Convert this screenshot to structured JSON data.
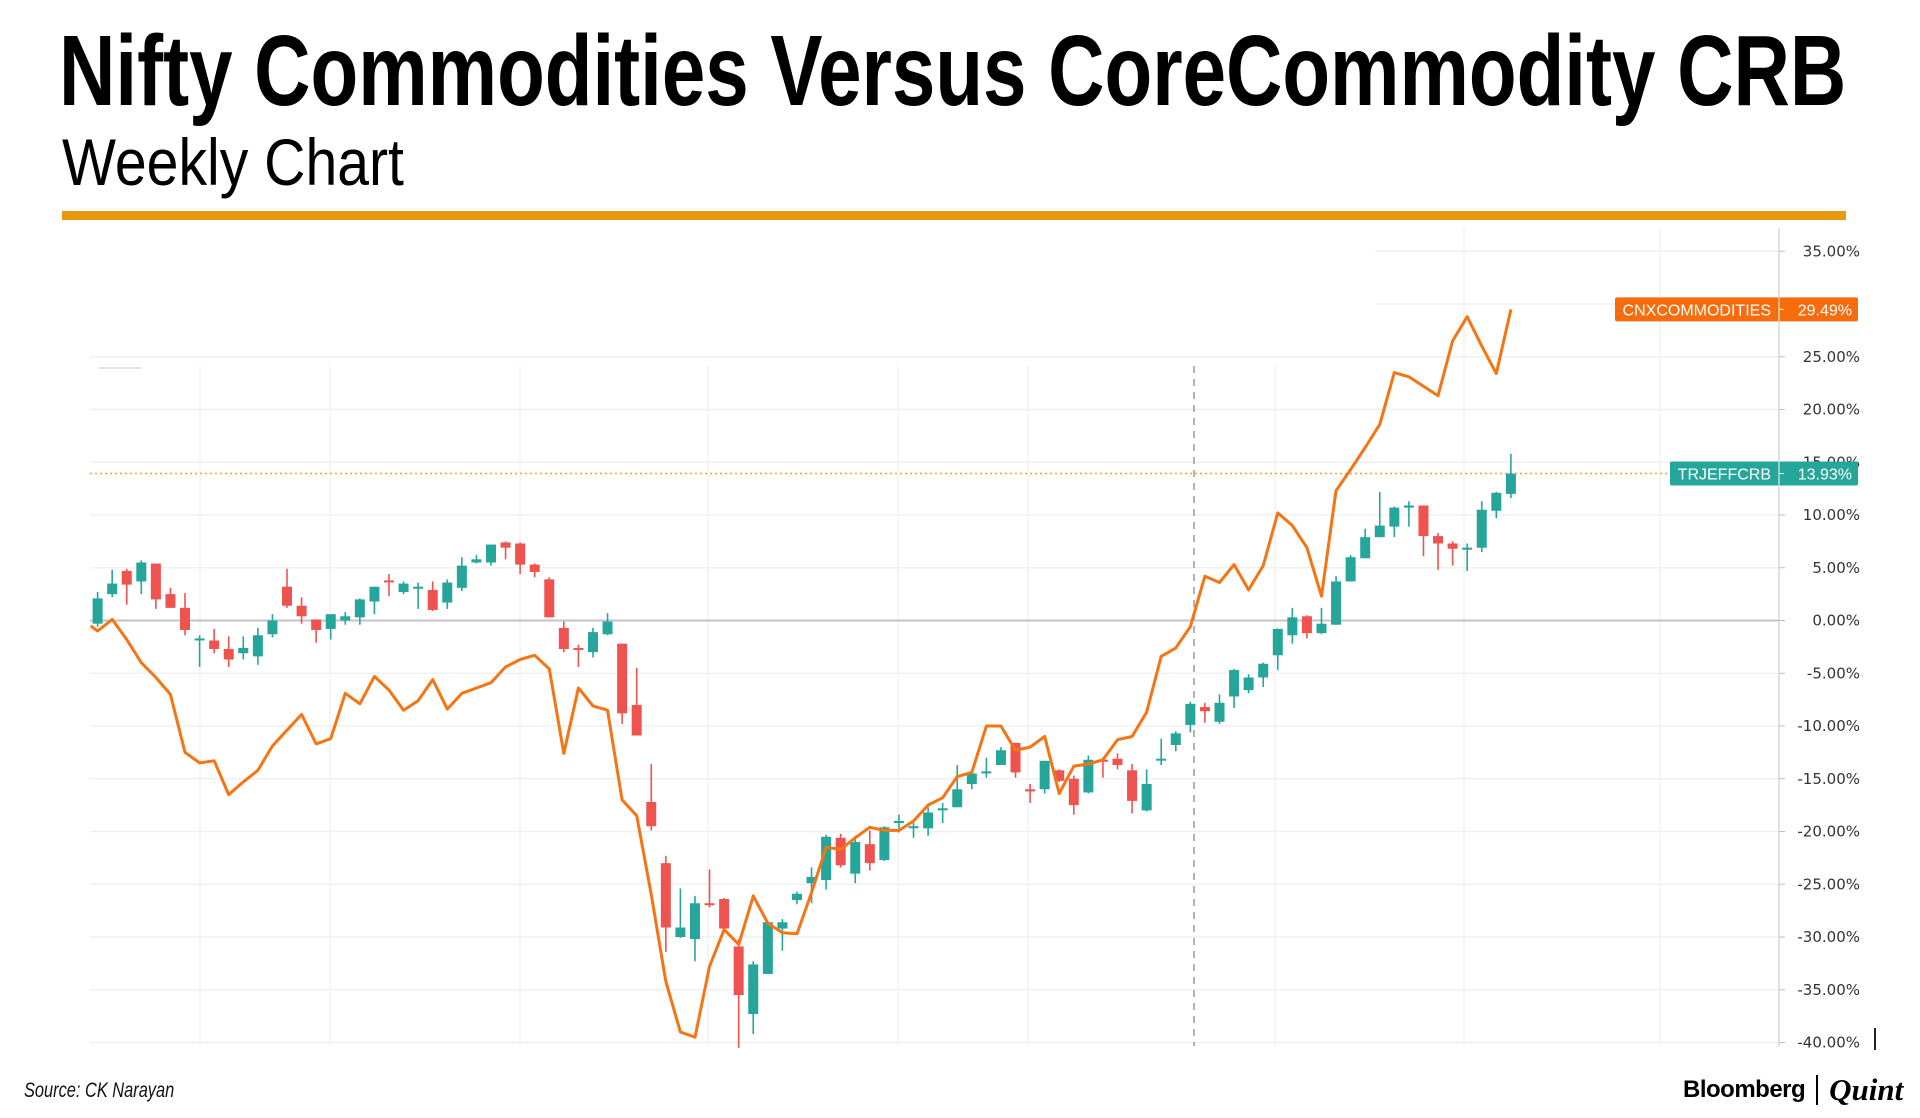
{
  "header": {
    "title": "Nifty Commodities Versus CoreCommodity CRB",
    "subtitle": "Weekly Chart"
  },
  "footer": {
    "source": "Source: CK Narayan",
    "logo_left": "Bloomberg",
    "logo_right": "Quint"
  },
  "colors": {
    "accent_rule": "#e89a0f",
    "candle_up": "#26a69a",
    "candle_down": "#ef5350",
    "line": "#f57414",
    "badge_orange": "#f76d0e",
    "badge_teal": "#26a69a"
  },
  "chart_data": {
    "type": "line",
    "title": "",
    "xlabel": "",
    "ylabel": "",
    "ylim": [
      -40,
      35
    ],
    "y_unit": "%",
    "y_ticks": [
      "35.00%",
      "25.00%",
      "20.00%",
      "15.00%",
      "10.00%",
      "5.00%",
      "0.00%",
      "-5.00%",
      "-10.00%",
      "-15.00%",
      "-20.00%",
      "-25.00%",
      "-30.00%",
      "-35.00%",
      "-40.00%"
    ],
    "grid": true,
    "x_interval": "weekly",
    "series": [
      {
        "name": "TRJEFFCRB",
        "style": "candlestick",
        "last_label": "13.93%",
        "ohlc_fields": [
          "open",
          "high",
          "low",
          "close"
        ],
        "ohlc": [
          [
            -0.3,
            2.7,
            -0.6,
            2.1
          ],
          [
            2.5,
            4.8,
            2.2,
            3.5
          ],
          [
            4.7,
            4.9,
            1.5,
            3.4
          ],
          [
            3.7,
            5.7,
            2.5,
            5.5
          ],
          [
            5.4,
            5.4,
            1.1,
            2.0
          ],
          [
            2.5,
            3.1,
            1.2,
            1.2
          ],
          [
            1.2,
            2.6,
            -1.4,
            -0.9
          ],
          [
            -1.8,
            -1.4,
            -4.4,
            -1.7
          ],
          [
            -1.9,
            -0.8,
            -3.1,
            -2.7
          ],
          [
            -2.7,
            -1.5,
            -4.4,
            -3.7
          ],
          [
            -3.1,
            -1.5,
            -3.7,
            -2.6
          ],
          [
            -3.4,
            -0.7,
            -4.2,
            -1.4
          ],
          [
            -1.3,
            0.6,
            -1.6,
            0.0
          ],
          [
            3.2,
            4.9,
            1.2,
            1.4
          ],
          [
            1.4,
            2.2,
            -0.3,
            0.4
          ],
          [
            0.1,
            0.1,
            -2.1,
            -0.9
          ],
          [
            -0.8,
            0.6,
            -1.8,
            0.6
          ],
          [
            0.0,
            0.8,
            -0.4,
            0.4
          ],
          [
            0.3,
            2.1,
            -0.4,
            2.0
          ],
          [
            1.8,
            3.2,
            0.6,
            3.2
          ],
          [
            3.8,
            4.4,
            2.3,
            3.7
          ],
          [
            2.7,
            3.7,
            2.5,
            3.5
          ],
          [
            3.1,
            3.6,
            1.1,
            3.2
          ],
          [
            2.9,
            3.7,
            0.9,
            1.0
          ],
          [
            1.7,
            3.9,
            1.1,
            3.6
          ],
          [
            3.1,
            6.0,
            2.8,
            5.2
          ],
          [
            5.5,
            6.2,
            5.4,
            5.8
          ],
          [
            5.5,
            7.2,
            5.2,
            7.2
          ],
          [
            7.4,
            7.5,
            5.8,
            6.9
          ],
          [
            7.3,
            7.4,
            4.4,
            5.3
          ],
          [
            5.3,
            5.4,
            4.1,
            4.6
          ],
          [
            3.9,
            4.1,
            0.3,
            0.3
          ],
          [
            -0.7,
            -0.1,
            -3.0,
            -2.7
          ],
          [
            -2.6,
            -2.3,
            -4.4,
            -2.7
          ],
          [
            -3.0,
            -0.7,
            -3.5,
            -1.1
          ],
          [
            -1.3,
            0.7,
            -1.4,
            -0.1
          ],
          [
            -2.2,
            -2.2,
            -9.8,
            -8.8
          ],
          [
            -8.0,
            -4.5,
            -10.9,
            -10.9
          ],
          [
            -17.2,
            -13.6,
            -19.9,
            -19.5
          ],
          [
            -23.0,
            -22.3,
            -31.4,
            -29.1
          ],
          [
            -30.0,
            -25.4,
            -30.1,
            -29.1
          ],
          [
            -30.2,
            -26.1,
            -32.3,
            -26.8
          ],
          [
            -26.8,
            -23.6,
            -27.2,
            -26.9
          ],
          [
            -26.4,
            -26.3,
            -29.3,
            -29.2
          ],
          [
            -30.9,
            -30.2,
            -40.5,
            -35.5
          ],
          [
            -37.3,
            -32.3,
            -39.2,
            -32.6
          ],
          [
            -33.5,
            -28.6,
            -33.5,
            -28.6
          ],
          [
            -29.2,
            -28.3,
            -31.3,
            -28.6
          ],
          [
            -26.5,
            -25.7,
            -26.9,
            -25.9
          ],
          [
            -24.9,
            -23.4,
            -26.8,
            -24.3
          ],
          [
            -24.6,
            -20.3,
            -25.5,
            -20.5
          ],
          [
            -20.6,
            -20.2,
            -23.4,
            -23.2
          ],
          [
            -24.0,
            -20.4,
            -24.9,
            -21.0
          ],
          [
            -21.2,
            -19.9,
            -23.7,
            -23.0
          ],
          [
            -22.7,
            -19.5,
            -22.8,
            -19.6
          ],
          [
            -19.2,
            -18.4,
            -20.1,
            -19.0
          ],
          [
            -19.6,
            -19.0,
            -20.6,
            -19.5
          ],
          [
            -19.7,
            -17.7,
            -20.4,
            -18.2
          ],
          [
            -17.9,
            -17.3,
            -19.2,
            -17.8
          ],
          [
            -17.7,
            -13.7,
            -17.7,
            -16.0
          ],
          [
            -15.5,
            -14.2,
            -16.0,
            -14.5
          ],
          [
            -14.4,
            -13.0,
            -14.9,
            -14.3
          ],
          [
            -13.7,
            -12.0,
            -13.7,
            -12.3
          ],
          [
            -11.6,
            -11.6,
            -14.9,
            -14.4
          ],
          [
            -16.0,
            -15.5,
            -17.3,
            -16.2
          ],
          [
            -16.0,
            -13.3,
            -16.4,
            -13.3
          ],
          [
            -14.2,
            -14.1,
            -15.3,
            -15.2
          ],
          [
            -15.0,
            -14.7,
            -18.4,
            -17.5
          ],
          [
            -16.3,
            -12.8,
            -16.4,
            -13.2
          ],
          [
            -13.2,
            -13.0,
            -14.9,
            -13.3
          ],
          [
            -13.1,
            -12.6,
            -14.1,
            -13.7
          ],
          [
            -14.2,
            -13.6,
            -18.3,
            -17.1
          ],
          [
            -18.0,
            -14.1,
            -18.1,
            -15.5
          ],
          [
            -13.2,
            -11.2,
            -13.7,
            -13.1
          ],
          [
            -11.8,
            -10.5,
            -12.4,
            -10.7
          ],
          [
            -9.9,
            -7.7,
            -10.6,
            -7.9
          ],
          [
            -8.2,
            -7.8,
            -9.7,
            -8.6
          ],
          [
            -9.6,
            -7.0,
            -9.8,
            -7.8
          ],
          [
            -7.2,
            -4.6,
            -8.3,
            -4.7
          ],
          [
            -6.6,
            -5.1,
            -6.9,
            -5.4
          ],
          [
            -5.4,
            -4.0,
            -6.3,
            -4.1
          ],
          [
            -3.3,
            -0.75,
            -4.7,
            -0.8
          ],
          [
            -1.4,
            1.2,
            -2.2,
            0.3
          ],
          [
            0.4,
            0.5,
            -1.7,
            -1.2
          ],
          [
            -1.2,
            1.2,
            -1.3,
            -0.3
          ],
          [
            -0.4,
            4.2,
            -0.4,
            3.7
          ],
          [
            3.7,
            6.2,
            3.7,
            6.0
          ],
          [
            5.9,
            8.7,
            5.9,
            7.9
          ],
          [
            7.9,
            12.2,
            7.9,
            9.0
          ],
          [
            8.9,
            10.8,
            7.9,
            10.7
          ],
          [
            10.7,
            11.3,
            8.9,
            10.9
          ],
          [
            10.9,
            10.9,
            6.1,
            8.0
          ],
          [
            8.0,
            8.3,
            4.8,
            7.3
          ],
          [
            7.3,
            7.5,
            5.2,
            6.8
          ],
          [
            6.8,
            7.3,
            4.7,
            6.9
          ],
          [
            6.9,
            11.3,
            6.5,
            10.5
          ],
          [
            10.4,
            12.2,
            9.7,
            12.1
          ],
          [
            12.0,
            15.8,
            11.6,
            13.93
          ]
        ]
      },
      {
        "name": "CNXCOMMODITIES",
        "style": "line",
        "last_label": "29.49%",
        "values": [
          -1.0,
          0.1,
          -1.8,
          -4.0,
          -5.4,
          -7.0,
          -12.5,
          -13.5,
          -13.3,
          -16.5,
          -15.3,
          -14.2,
          -11.9,
          -10.4,
          -8.9,
          -11.7,
          -11.2,
          -6.9,
          -7.9,
          -5.3,
          -6.6,
          -8.5,
          -7.6,
          -5.6,
          -8.4,
          -6.9,
          -6.4,
          -5.9,
          -4.4,
          -3.7,
          -3.3,
          -4.6,
          -12.6,
          -6.4,
          -8.1,
          -8.5,
          -17.0,
          -18.5,
          -26.0,
          -34.2,
          -39.0,
          -39.5,
          -32.8,
          -29.3,
          -30.7,
          -26.1,
          -28.7,
          -29.6,
          -29.7,
          -25.8,
          -21.5,
          -21.7,
          -20.6,
          -19.6,
          -19.9,
          -19.9,
          -19.0,
          -17.5,
          -16.8,
          -14.8,
          -14.4,
          -10.0,
          -10.0,
          -12.3,
          -12.0,
          -11.0,
          -16.4,
          -13.8,
          -13.6,
          -13.2,
          -11.3,
          -11.0,
          -8.7,
          -3.4,
          -2.6,
          -0.6,
          4.2,
          3.6,
          5.3,
          2.9,
          5.2,
          10.2,
          9.0,
          6.9,
          2.3,
          12.3,
          14.3,
          16.4,
          18.6,
          23.5,
          23.1,
          22.2,
          21.3,
          26.5,
          28.8,
          26.0,
          23.4,
          29.49
        ]
      }
    ]
  }
}
